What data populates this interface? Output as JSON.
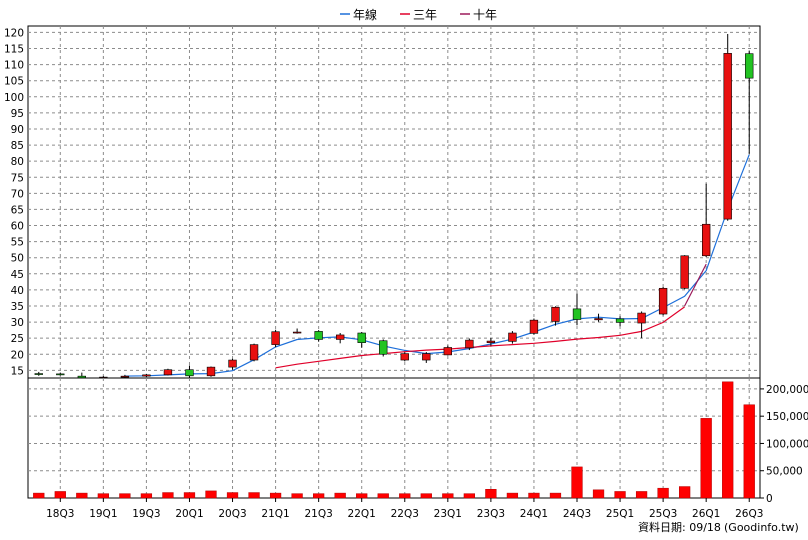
{
  "legend": [
    {
      "label": "年線",
      "color": "#1e6fd9"
    },
    {
      "label": "三年",
      "color": "#e0002a"
    },
    {
      "label": "十年",
      "color": "#9c1a5a"
    }
  ],
  "footer": "資料日期: 09/18",
  "source": "(Goodinfo.tw)",
  "chart_data": [
    {
      "type": "candlestick",
      "ylim": [
        12,
        122
      ],
      "yticks": [
        15,
        20,
        25,
        30,
        35,
        40,
        45,
        50,
        55,
        60,
        65,
        70,
        75,
        80,
        85,
        90,
        95,
        100,
        105,
        110,
        115,
        120
      ],
      "xticks": [
        {
          "label": "18Q3",
          "index": 1
        },
        {
          "label": "19Q1",
          "index": 3
        },
        {
          "label": "19Q3",
          "index": 5
        },
        {
          "label": "20Q1",
          "index": 7
        },
        {
          "label": "20Q3",
          "index": 9
        },
        {
          "label": "21Q1",
          "index": 11
        },
        {
          "label": "21Q3",
          "index": 13
        },
        {
          "label": "22Q1",
          "index": 15
        },
        {
          "label": "22Q3",
          "index": 17
        },
        {
          "label": "23Q1",
          "index": 19
        },
        {
          "label": "23Q3",
          "index": 21
        },
        {
          "label": "24Q1",
          "index": 23
        },
        {
          "label": "24Q3",
          "index": 25
        },
        {
          "label": "25Q1",
          "index": 27
        },
        {
          "label": "25Q3",
          "index": 29
        },
        {
          "label": "26Q1",
          "index": 31
        },
        {
          "label": "26Q3",
          "index": 33
        }
      ],
      "candles": [
        {
          "o": 14.0,
          "h": 14.5,
          "l": 13.3,
          "c": 13.9
        },
        {
          "o": 13.9,
          "h": 14.3,
          "l": 13.4,
          "c": 13.8
        },
        {
          "o": 13.2,
          "h": 14.3,
          "l": 12.0,
          "c": 12.5
        },
        {
          "o": 12.5,
          "h": 13.2,
          "l": 11.9,
          "c": 12.9
        },
        {
          "o": 12.9,
          "h": 13.6,
          "l": 12.4,
          "c": 13.2
        },
        {
          "o": 13.2,
          "h": 13.9,
          "l": 12.9,
          "c": 13.6
        },
        {
          "o": 13.6,
          "h": 15.5,
          "l": 13.4,
          "c": 15.2
        },
        {
          "o": 15.2,
          "h": 16.5,
          "l": 12.5,
          "c": 13.3
        },
        {
          "o": 13.3,
          "h": 16.2,
          "l": 13.0,
          "c": 16.0
        },
        {
          "o": 16.0,
          "h": 18.6,
          "l": 15.2,
          "c": 18.2
        },
        {
          "o": 18.2,
          "h": 23.3,
          "l": 17.8,
          "c": 23.0
        },
        {
          "o": 23.0,
          "h": 27.6,
          "l": 22.2,
          "c": 27.0
        },
        {
          "o": 26.9,
          "h": 28.0,
          "l": 26.4,
          "c": 26.9
        },
        {
          "o": 27.1,
          "h": 27.5,
          "l": 23.9,
          "c": 24.6
        },
        {
          "o": 24.6,
          "h": 26.6,
          "l": 23.4,
          "c": 26.0
        },
        {
          "o": 26.6,
          "h": 26.9,
          "l": 22.0,
          "c": 23.6
        },
        {
          "o": 24.2,
          "h": 24.6,
          "l": 19.3,
          "c": 20.0
        },
        {
          "o": 18.2,
          "h": 20.6,
          "l": 17.8,
          "c": 20.2
        },
        {
          "o": 18.2,
          "h": 20.7,
          "l": 17.3,
          "c": 20.2
        },
        {
          "o": 19.8,
          "h": 22.7,
          "l": 19.6,
          "c": 22.1
        },
        {
          "o": 22.0,
          "h": 24.9,
          "l": 21.3,
          "c": 24.4
        },
        {
          "o": 23.6,
          "h": 25.1,
          "l": 22.7,
          "c": 24.1
        },
        {
          "o": 24.0,
          "h": 27.2,
          "l": 23.3,
          "c": 26.6
        },
        {
          "o": 26.5,
          "h": 31.1,
          "l": 26.1,
          "c": 30.6
        },
        {
          "o": 30.2,
          "h": 34.9,
          "l": 28.9,
          "c": 34.6
        },
        {
          "o": 34.1,
          "h": 38.9,
          "l": 29.0,
          "c": 30.8
        },
        {
          "o": 30.7,
          "h": 32.6,
          "l": 30.1,
          "c": 31.1
        },
        {
          "o": 31.0,
          "h": 31.8,
          "l": 28.7,
          "c": 29.9
        },
        {
          "o": 29.7,
          "h": 33.3,
          "l": 25.0,
          "c": 32.8
        },
        {
          "o": 32.5,
          "h": 40.9,
          "l": 32.1,
          "c": 40.5
        },
        {
          "o": 40.5,
          "h": 50.8,
          "l": 40.2,
          "c": 50.6
        },
        {
          "o": 50.6,
          "h": 73.0,
          "l": 50.2,
          "c": 60.4
        },
        {
          "o": 62.0,
          "h": 119.5,
          "l": 61.5,
          "c": 113.5
        },
        {
          "o": 113.4,
          "h": 114.2,
          "l": 82.3,
          "c": 105.8
        }
      ],
      "series": [
        {
          "name": "年線",
          "color": "#1e6fd9",
          "values": [
            null,
            null,
            null,
            null,
            13.2,
            13.3,
            13.6,
            13.9,
            14.0,
            14.9,
            18.3,
            22.3,
            24.6,
            25.1,
            25.4,
            24.5,
            22.6,
            21.2,
            20.2,
            20.7,
            21.8,
            23.2,
            24.7,
            26.9,
            29.3,
            31.0,
            31.5,
            31.0,
            31.1,
            34.5,
            38.0,
            46.0,
            65.0,
            82.0
          ]
        },
        {
          "name": "三年",
          "color": "#e0002a",
          "values": [
            null,
            null,
            null,
            null,
            null,
            null,
            null,
            null,
            null,
            null,
            null,
            15.8,
            16.9,
            17.8,
            18.7,
            19.6,
            20.2,
            20.8,
            21.3,
            21.6,
            22.1,
            22.6,
            23.0,
            23.4,
            24.0,
            24.7,
            25.2,
            25.9,
            27.1,
            29.9,
            34.7,
            null,
            null,
            null
          ]
        },
        {
          "name": "十年",
          "color": "#9c1a5a",
          "values": [
            null,
            null,
            null,
            null,
            null,
            null,
            null,
            null,
            null,
            null,
            null,
            null,
            null,
            null,
            null,
            null,
            null,
            null,
            null,
            null,
            null,
            null,
            null,
            null,
            null,
            null,
            null,
            null,
            null,
            null,
            35.0,
            48.0,
            null,
            null
          ]
        }
      ]
    },
    {
      "type": "bar",
      "ylim": [
        0,
        220000
      ],
      "yticks": [
        0,
        50000,
        100000,
        150000,
        200000
      ],
      "ytick_labels": [
        "0",
        "50,000",
        "100,000",
        "150,000",
        "200,000"
      ],
      "color": "#ff0000",
      "values": [
        9000,
        12000,
        9000,
        8000,
        8000,
        8000,
        10000,
        10000,
        13000,
        10000,
        10000,
        9000,
        8000,
        8000,
        9000,
        8000,
        8000,
        8000,
        8000,
        8000,
        8000,
        16000,
        9000,
        9000,
        9000,
        57000,
        15000,
        12000,
        12000,
        18000,
        21000,
        146000,
        213000,
        171000
      ]
    }
  ]
}
